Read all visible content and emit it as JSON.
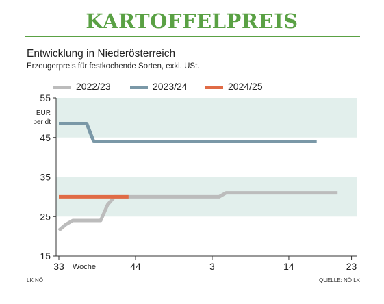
{
  "header": {
    "title": "KARTOFFELPREIS"
  },
  "footer": {
    "source_left": "LK NÖ",
    "source_right": "QUELLE: NÖ LK"
  },
  "colors": {
    "title": "#5aa144",
    "band": "#e2efec",
    "axis": "#333333"
  },
  "chart_data": {
    "type": "line",
    "title": "Entwicklung in Niederösterreich",
    "subtitle": "Erzeugerpreis für festkochende Sorten, exkl. USt.",
    "ylabel": "EUR per dt",
    "xlabel": "Woche",
    "ylim": [
      15,
      55
    ],
    "yticks": [
      15,
      25,
      35,
      45,
      55
    ],
    "grid": false,
    "shaded_bands": [
      [
        25,
        35
      ],
      [
        45,
        55
      ]
    ],
    "x_index_range": [
      33,
      74
    ],
    "xticks": [
      {
        "x": 33,
        "label": "33"
      },
      {
        "x": 44,
        "label": "44"
      },
      {
        "x": 55,
        "label": "3"
      },
      {
        "x": 66,
        "label": "14"
      },
      {
        "x": 75,
        "label": "23"
      }
    ],
    "legend_position": "top",
    "series": [
      {
        "name": "2022/23",
        "color": "#bcbcbc",
        "points": [
          [
            33,
            21.5
          ],
          [
            34,
            23
          ],
          [
            35,
            24
          ],
          [
            36,
            24
          ],
          [
            37,
            24
          ],
          [
            38,
            24
          ],
          [
            39,
            24
          ],
          [
            40,
            28
          ],
          [
            41,
            30
          ],
          [
            42,
            30
          ],
          [
            43,
            30
          ],
          [
            44,
            30
          ],
          [
            45,
            30
          ],
          [
            46,
            30
          ],
          [
            47,
            30
          ],
          [
            48,
            30
          ],
          [
            49,
            30
          ],
          [
            50,
            30
          ],
          [
            51,
            30
          ],
          [
            52,
            30
          ],
          [
            53,
            30
          ],
          [
            54,
            30
          ],
          [
            55,
            30
          ],
          [
            56,
            30
          ],
          [
            57,
            31
          ],
          [
            58,
            31
          ],
          [
            59,
            31
          ],
          [
            60,
            31
          ],
          [
            61,
            31
          ],
          [
            62,
            31
          ],
          [
            63,
            31
          ],
          [
            64,
            31
          ],
          [
            65,
            31
          ],
          [
            66,
            31
          ],
          [
            67,
            31
          ],
          [
            68,
            31
          ],
          [
            69,
            31
          ],
          [
            70,
            31
          ],
          [
            71,
            31
          ],
          [
            72,
            31
          ],
          [
            73,
            31
          ]
        ]
      },
      {
        "name": "2023/24",
        "color": "#7a98a7",
        "points": [
          [
            33,
            48.5
          ],
          [
            34,
            48.5
          ],
          [
            35,
            48.5
          ],
          [
            36,
            48.5
          ],
          [
            37,
            48.5
          ],
          [
            38,
            44
          ],
          [
            39,
            44
          ],
          [
            40,
            44
          ],
          [
            41,
            44
          ],
          [
            42,
            44
          ],
          [
            43,
            44
          ],
          [
            44,
            44
          ],
          [
            45,
            44
          ],
          [
            46,
            44
          ],
          [
            47,
            44
          ],
          [
            48,
            44
          ],
          [
            49,
            44
          ],
          [
            50,
            44
          ],
          [
            51,
            44
          ],
          [
            52,
            44
          ],
          [
            53,
            44
          ],
          [
            54,
            44
          ],
          [
            55,
            44
          ],
          [
            56,
            44
          ],
          [
            57,
            44
          ],
          [
            58,
            44
          ],
          [
            59,
            44
          ],
          [
            60,
            44
          ],
          [
            61,
            44
          ],
          [
            62,
            44
          ],
          [
            63,
            44
          ],
          [
            64,
            44
          ],
          [
            65,
            44
          ],
          [
            66,
            44
          ],
          [
            67,
            44
          ],
          [
            68,
            44
          ],
          [
            69,
            44
          ],
          [
            70,
            44
          ]
        ]
      },
      {
        "name": "2024/25",
        "color": "#e06b46",
        "points": [
          [
            33,
            30
          ],
          [
            34,
            30
          ],
          [
            35,
            30
          ],
          [
            36,
            30
          ],
          [
            37,
            30
          ],
          [
            38,
            30
          ],
          [
            39,
            30
          ],
          [
            40,
            30
          ],
          [
            41,
            30
          ],
          [
            42,
            30
          ],
          [
            43,
            30
          ]
        ]
      }
    ]
  }
}
